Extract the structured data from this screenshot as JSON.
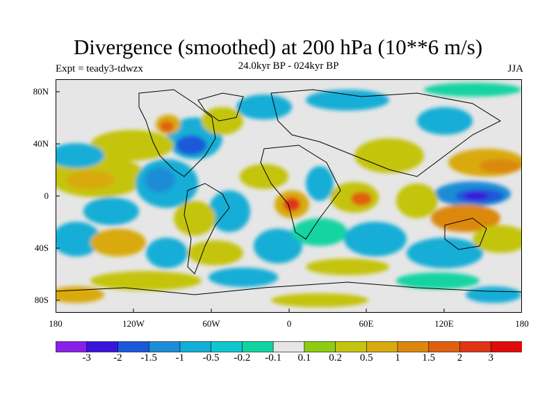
{
  "title": "Divergence (smoothed) at 200 hPa (10**6 m/s)",
  "subtitle_left": "Expt = teady3-tdwzx",
  "subtitle_center": "24.0kyr BP - 024kyr BP",
  "subtitle_right": "JJA",
  "lat_labels": [
    "80N",
    "40N",
    "0",
    "40S",
    "80S"
  ],
  "lon_labels": [
    "180",
    "120W",
    "60W",
    "0",
    "60E",
    "120E",
    "180"
  ],
  "colorbar": {
    "labels": [
      "-3",
      "-2",
      "-1.5",
      "-1",
      "-0.5",
      "-0.2",
      "-0.1",
      "0.1",
      "0.2",
      "0.5",
      "1",
      "1.5",
      "2",
      "3"
    ],
    "colors": [
      "#8A1FE8",
      "#3A14DE",
      "#1A58D8",
      "#1C8CD6",
      "#12AED6",
      "#10C7CF",
      "#12D4A2",
      "#E6E6E6",
      "#8ECC12",
      "#C4C410",
      "#D8AA10",
      "#DC8810",
      "#E06010",
      "#E03414",
      "#E00A0A"
    ]
  },
  "map_features": {
    "continents": [
      "North America",
      "South America",
      "Greenland",
      "Europe",
      "Africa",
      "Asia",
      "Australia",
      "Antarctica"
    ]
  }
}
